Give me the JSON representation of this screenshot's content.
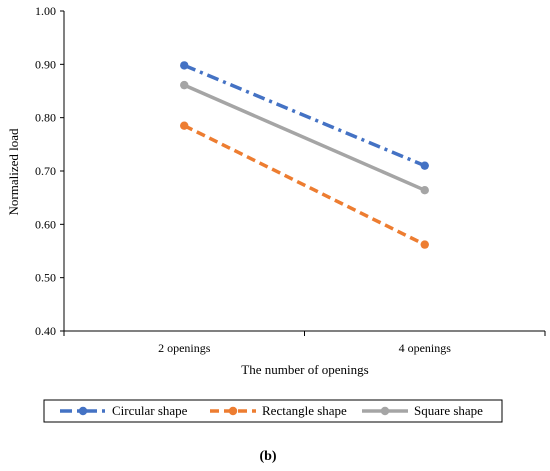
{
  "chart_data": {
    "type": "line",
    "categories": [
      "2 openings",
      "4 openings"
    ],
    "series": [
      {
        "name": "Circular shape",
        "values": [
          0.898,
          0.71
        ],
        "color": "#4472C4",
        "dash": "dash-dot"
      },
      {
        "name": "Rectangle shape",
        "values": [
          0.785,
          0.562
        ],
        "color": "#ED7D31",
        "dash": "dash"
      },
      {
        "name": "Square shape",
        "values": [
          0.861,
          0.664
        ],
        "color": "#A5A5A5",
        "dash": "solid"
      }
    ],
    "xlabel": "The number of openings",
    "ylabel": "Normalized load",
    "ylim": [
      0.4,
      1.0
    ],
    "yticks": [
      "0.40",
      "0.50",
      "0.60",
      "0.70",
      "0.80",
      "0.90",
      "1.00"
    ],
    "grid": false,
    "legend_position": "bottom",
    "caption": "(b)"
  }
}
